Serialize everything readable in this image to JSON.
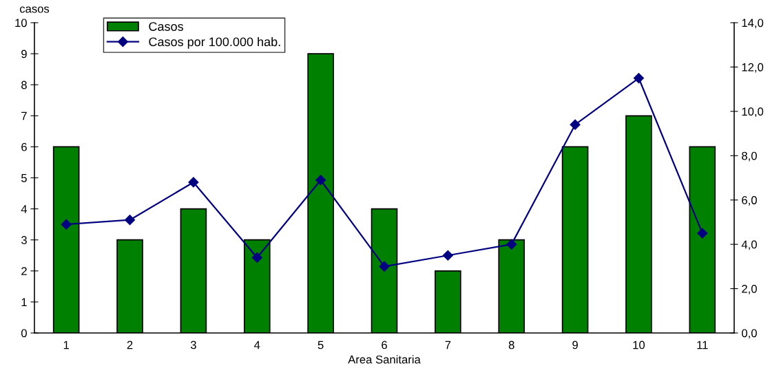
{
  "chart_data": {
    "type": "bar",
    "xlabel": "Area Sanitaria",
    "ylabel": "casos",
    "categories": [
      "1",
      "2",
      "3",
      "4",
      "5",
      "6",
      "7",
      "8",
      "9",
      "10",
      "11"
    ],
    "series": [
      {
        "name": "Casos",
        "color": "#008000",
        "values": [
          6,
          3,
          4,
          3,
          9,
          4,
          2,
          3,
          6,
          7,
          6
        ]
      },
      {
        "name": "Casos por 100.000 hab.",
        "type": "line",
        "axis": "y2",
        "color": "#000080",
        "marker": "diamond",
        "values": [
          4.9,
          5.1,
          6.8,
          3.4,
          6.9,
          3.0,
          3.5,
          4.0,
          9.4,
          11.5,
          4.5
        ]
      }
    ],
    "ylim": [
      0,
      10
    ],
    "yticks": [
      0,
      1,
      2,
      3,
      4,
      5,
      6,
      7,
      8,
      9,
      10
    ],
    "y2lim": [
      0,
      14
    ],
    "y2ticks": [
      {
        "value": 0,
        "label": "0,0"
      },
      {
        "value": 2,
        "label": "2,0"
      },
      {
        "value": 4,
        "label": "4,0"
      },
      {
        "value": 6,
        "label": "6,0"
      },
      {
        "value": 8,
        "label": "8,0"
      },
      {
        "value": 10,
        "label": "10,0"
      },
      {
        "value": 12,
        "label": "12,0"
      },
      {
        "value": 14,
        "label": "14,0"
      }
    ],
    "legend": "top left",
    "grid": false
  }
}
